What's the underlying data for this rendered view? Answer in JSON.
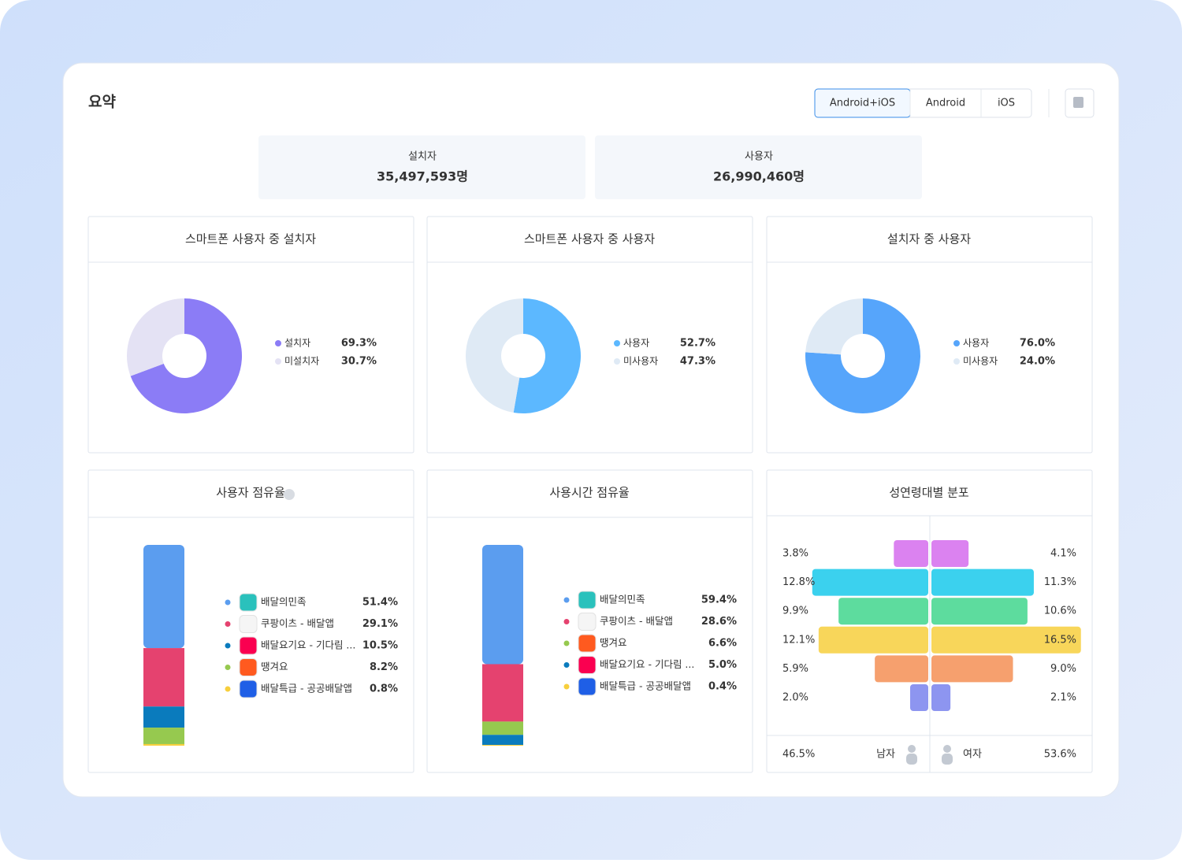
{
  "header": {
    "title": "요약",
    "tabs": [
      "Android+iOS",
      "Android",
      "iOS"
    ],
    "active_tab": 0
  },
  "summary": [
    {
      "label": "설치자",
      "value": "35,497,593명"
    },
    {
      "label": "사용자",
      "value": "26,990,460명"
    }
  ],
  "chart_data": [
    {
      "type": "donut",
      "title": "스마트폰 사용자 중 설치자",
      "categories": [
        "설치자",
        "미설치자"
      ],
      "values": [
        69.3,
        30.7
      ],
      "value_labels": [
        "69.3%",
        "30.7%"
      ],
      "colors": [
        "#8b7cf6",
        "#e4e2f4"
      ]
    },
    {
      "type": "donut",
      "title": "스마트폰 사용자 중 사용자",
      "categories": [
        "사용자",
        "미사용자"
      ],
      "values": [
        52.7,
        47.3
      ],
      "value_labels": [
        "52.7%",
        "47.3%"
      ],
      "colors": [
        "#5cb8ff",
        "#dfeaf5"
      ]
    },
    {
      "type": "donut",
      "title": "설치자 중 사용자",
      "categories": [
        "사용자",
        "미사용자"
      ],
      "values": [
        76.0,
        24.0
      ],
      "value_labels": [
        "76.0%",
        "24.0%"
      ],
      "colors": [
        "#56a5fb",
        "#dfeaf5"
      ]
    },
    {
      "type": "stacked-bar",
      "title": "사용자 점유율",
      "categories": [
        "배달의민족",
        "쿠팡이츠 - 배달앱",
        "배달요기요 - 기다림 ...",
        "땡겨요",
        "배달특급 - 공공배달앱"
      ],
      "values": [
        51.4,
        29.1,
        10.5,
        8.2,
        0.8
      ],
      "value_labels": [
        "51.4%",
        "29.1%",
        "10.5%",
        "8.2%",
        "0.8%"
      ],
      "colors": [
        "#5b9def",
        "#e5426f",
        "#0a7bbd",
        "#96c94f",
        "#f7cf3c"
      ]
    },
    {
      "type": "stacked-bar",
      "title": "사용시간 점유율",
      "categories": [
        "배달의민족",
        "쿠팡이츠 - 배달앱",
        "땡겨요",
        "배달요기요 - 기다림 ...",
        "배달특급 - 공공배달앱"
      ],
      "values": [
        59.4,
        28.6,
        6.6,
        5.0,
        0.4
      ],
      "value_labels": [
        "59.4%",
        "28.6%",
        "6.6%",
        "5.0%",
        "0.4%"
      ],
      "colors": [
        "#5b9def",
        "#e5426f",
        "#96c94f",
        "#0a7bbd",
        "#f7cf3c"
      ]
    },
    {
      "type": "pyramid",
      "title": "성연령대별 분포",
      "colors": [
        "#db82f0",
        "#3bd1ee",
        "#5ddc9e",
        "#f8d65a",
        "#f6a06e",
        "#8d95f0"
      ],
      "label_colors": [
        "#c46fde",
        "#2cb7d6",
        "#3fc285",
        "#e2b92f",
        "#ea8654",
        "#7881e0"
      ],
      "series": [
        {
          "name": "남자",
          "values": [
            3.8,
            12.8,
            9.9,
            12.1,
            5.9,
            2.0
          ],
          "value_labels": [
            "3.8%",
            "12.8%",
            "9.9%",
            "12.1%",
            "5.9%",
            "2.0%"
          ],
          "total": 46.5,
          "total_label": "46.5%"
        },
        {
          "name": "여자",
          "values": [
            4.1,
            11.3,
            10.6,
            16.5,
            9.0,
            2.1
          ],
          "value_labels": [
            "4.1%",
            "11.3%",
            "10.6%",
            "16.5%",
            "9.0%",
            "2.1%"
          ],
          "total": 53.6,
          "total_label": "53.6%"
        }
      ]
    }
  ]
}
